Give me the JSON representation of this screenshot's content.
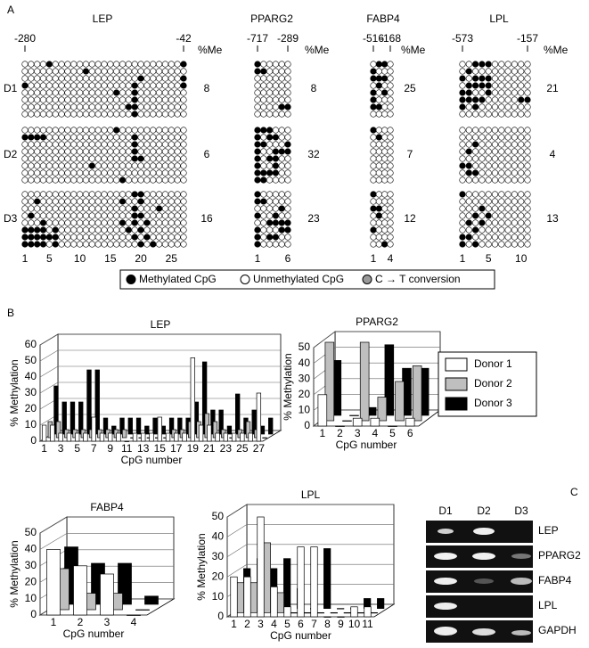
{
  "panel_labels": [
    "A",
    "B",
    "C"
  ],
  "methylation_map": {
    "donors": [
      "D1",
      "D2",
      "D3"
    ],
    "me_label": "%Me",
    "legend": [
      "Methylated CpG",
      "Unmethylated CpG",
      "C → T conversion"
    ],
    "genes": [
      {
        "name": "LEP",
        "region": [
          -280,
          -42
        ],
        "xlim": [
          1,
          27
        ],
        "xticks": [
          1,
          5,
          10,
          15,
          20,
          25
        ],
        "percent": [
          8,
          6,
          16
        ],
        "clones": [
          [
            [
              5,
              27
            ],
            [
              11
            ],
            [
              20,
              27
            ],
            [
              1,
              19,
              27
            ],
            [
              16,
              19
            ],
            [
              19
            ],
            [
              18,
              19
            ],
            [
              19
            ]
          ],
          [
            [
              16
            ],
            [
              1,
              2,
              3,
              4,
              19
            ],
            [
              19
            ],
            [
              19
            ],
            [
              19,
              20
            ],
            [
              12
            ],
            [],
            [
              17
            ]
          ],
          [
            [
              19,
              20
            ],
            [
              3,
              17,
              20
            ],
            [
              19,
              23
            ],
            [
              2,
              19,
              20
            ],
            [
              4,
              17,
              19,
              21
            ],
            [
              1,
              2,
              3,
              4,
              6,
              18,
              20
            ],
            [
              1,
              2,
              3,
              4,
              5,
              6,
              19,
              21
            ],
            [
              1,
              2,
              3,
              4,
              6,
              20,
              22
            ]
          ]
        ]
      },
      {
        "name": "PPARG2",
        "region": [
          -717,
          -289
        ],
        "xlim": [
          1,
          6
        ],
        "xticks": [
          1,
          6
        ],
        "percent": [
          8,
          32,
          23
        ],
        "clones": [
          [
            [
              1
            ],
            [
              1,
              2
            ],
            [],
            [],
            [],
            [],
            [
              5,
              6
            ],
            []
          ],
          [
            [
              1,
              2,
              3
            ],
            [
              1,
              3,
              4
            ],
            [
              1,
              2,
              6
            ],
            [
              1,
              4,
              5,
              6
            ],
            [
              1,
              3,
              4
            ],
            [
              1,
              4
            ],
            [
              1,
              2,
              3,
              4
            ],
            [
              1,
              2
            ]
          ],
          [
            [
              1
            ],
            [
              1,
              2
            ],
            [
              5
            ],
            [
              1,
              4
            ],
            [
              3,
              4,
              5,
              6
            ],
            [
              1,
              5,
              6
            ],
            [
              1,
              3,
              4
            ],
            [
              1
            ]
          ]
        ]
      },
      {
        "name": "FABP4",
        "region": [
          -516,
          -168
        ],
        "xlim": [
          1,
          4
        ],
        "xticks": [
          1,
          4
        ],
        "percent": [
          25,
          7,
          12
        ],
        "clones": [
          [
            [
              2,
              3
            ],
            [
              1
            ],
            [
              1,
              2,
              3
            ],
            [
              2
            ],
            [
              1,
              3
            ],
            [
              1
            ],
            [
              1,
              2
            ],
            []
          ],
          [
            [
              1
            ],
            [
              2
            ],
            [],
            [],
            [],
            [],
            [],
            []
          ],
          [
            [
              1
            ],
            [],
            [
              1,
              2
            ],
            [
              2
            ],
            [],
            [
              1
            ],
            [],
            [
              3
            ]
          ]
        ]
      },
      {
        "name": "LPL",
        "region": [
          -573,
          -157
        ],
        "xlim": [
          1,
          11
        ],
        "xticks": [
          1,
          5,
          10
        ],
        "percent": [
          21,
          4,
          13
        ],
        "clones": [
          [
            [
              3,
              4,
              5
            ],
            [
              2
            ],
            [
              1,
              3,
              4,
              5
            ],
            [
              2,
              3,
              4,
              5
            ],
            [
              1,
              2,
              5
            ],
            [
              1,
              2,
              3,
              4,
              10,
              11
            ],
            [
              1,
              3
            ],
            []
          ],
          [
            [],
            [],
            [
              3
            ],
            [
              2
            ],
            [],
            [
              1,
              2
            ],
            [
              2,
              3
            ],
            []
          ],
          [
            [
              1
            ],
            [],
            [
              4
            ],
            [
              3,
              5
            ],
            [
              2,
              4
            ],
            [
              3
            ],
            [
              1,
              2
            ],
            [
              1,
              3
            ]
          ]
        ]
      }
    ]
  },
  "chart_data": [
    {
      "type": "bar",
      "title": "LEP",
      "xlabel": "CpG number",
      "ylabel": "% Methylation",
      "categories": [
        "1",
        null,
        "3",
        null,
        "5",
        null,
        "7",
        null,
        "9",
        null,
        "11",
        null,
        "13",
        null,
        "15",
        null,
        "17",
        null,
        "19",
        null,
        "21",
        null,
        "23",
        null,
        "25",
        null,
        "27"
      ],
      "ylim": [
        0,
        60
      ],
      "yticks": [
        0,
        10,
        20,
        30,
        40,
        50,
        60
      ],
      "grid": true,
      "series": [
        {
          "color": "#ffffff",
          "values": [
            10,
            10,
            5,
            5,
            5,
            5,
            15,
            5,
            5,
            5,
            0,
            5,
            5,
            5,
            15,
            5,
            5,
            5,
            52,
            10,
            10,
            5,
            5,
            5,
            5,
            5,
            30
          ]
        },
        {
          "color": "#bfbfbf",
          "values": [
            10,
            10,
            5,
            5,
            5,
            5,
            5,
            5,
            5,
            5,
            0,
            0,
            0,
            0,
            0,
            5,
            5,
            10,
            10,
            15,
            10,
            5,
            0,
            5,
            10,
            5,
            0
          ]
        },
        {
          "color": "#000000",
          "values": [
            30,
            20,
            20,
            20,
            40,
            40,
            10,
            5,
            10,
            10,
            10,
            5,
            10,
            5,
            10,
            10,
            10,
            20,
            45,
            15,
            15,
            5,
            25,
            10,
            15,
            5,
            10
          ]
        }
      ]
    },
    {
      "type": "bar",
      "title": "PPARG2",
      "xlabel": "CpG number",
      "ylabel": "% Methylation",
      "categories": [
        "1",
        "2",
        "3",
        "4",
        "5",
        "6"
      ],
      "ylim": [
        0,
        50
      ],
      "yticks": [
        0,
        10,
        20,
        30,
        40,
        50
      ],
      "grid": true,
      "legend": "right",
      "series": [
        {
          "name": "Donor 1",
          "color": "#ffffff",
          "values": [
            20,
            0,
            5,
            5,
            0,
            5
          ]
        },
        {
          "name": "Donor 2",
          "color": "#bfbfbf",
          "values": [
            50,
            0,
            50,
            15,
            25,
            35
          ]
        },
        {
          "name": "Donor 3",
          "color": "#000000",
          "values": [
            35,
            0,
            5,
            45,
            30,
            30
          ]
        }
      ]
    },
    {
      "type": "bar",
      "title": "FABP4",
      "xlabel": "CpG number",
      "ylabel": "% Methylation",
      "categories": [
        "1",
        "2",
        "3",
        "4"
      ],
      "ylim": [
        0,
        50
      ],
      "yticks": [
        0,
        10,
        20,
        30,
        40,
        50
      ],
      "grid": true,
      "series": [
        {
          "color": "#ffffff",
          "values": [
            40,
            30,
            25,
            0
          ]
        },
        {
          "color": "#bfbfbf",
          "values": [
            25,
            10,
            10,
            0
          ]
        },
        {
          "color": "#000000",
          "values": [
            35,
            25,
            25,
            5
          ]
        }
      ]
    },
    {
      "type": "bar",
      "title": "LPL",
      "xlabel": "CpG number",
      "ylabel": "% Methylation",
      "categories": [
        "1",
        "2",
        "3",
        "4",
        "5",
        "6",
        "7",
        "8",
        "9",
        "10",
        "11"
      ],
      "ylim": [
        0,
        50
      ],
      "yticks": [
        0,
        10,
        20,
        30,
        40,
        50
      ],
      "grid": true,
      "series": [
        {
          "color": "#ffffff",
          "values": [
            20,
            20,
            50,
            15,
            5,
            35,
            35,
            0,
            0,
            5,
            5
          ]
        },
        {
          "color": "#bfbfbf",
          "values": [
            15,
            15,
            35,
            10,
            0,
            0,
            0,
            0,
            0,
            0,
            0
          ]
        },
        {
          "color": "#000000",
          "values": [
            20,
            25,
            20,
            25,
            10,
            0,
            30,
            0,
            0,
            5,
            5
          ]
        }
      ]
    }
  ],
  "gel": {
    "lanes": [
      "D1",
      "D2",
      "D3"
    ],
    "genes": [
      "LEP",
      "PPARG2",
      "FABP4",
      "LPL",
      "GAPDH"
    ]
  }
}
